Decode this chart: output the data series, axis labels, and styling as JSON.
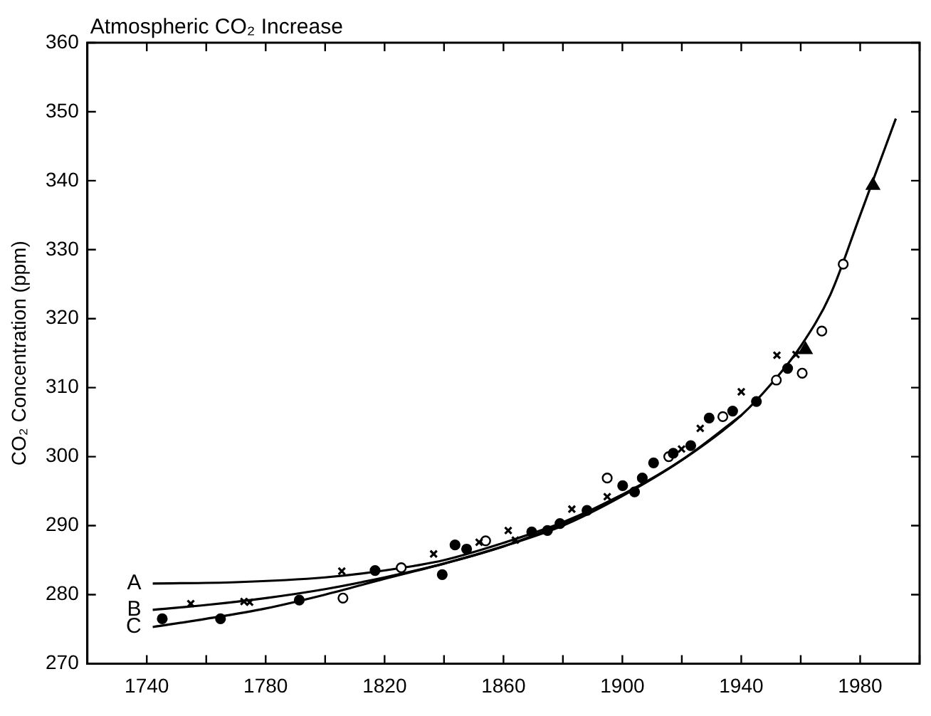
{
  "chart_data": {
    "type": "scatter",
    "title": "Atmospheric CO₂ Increase",
    "ylabel": "CO₂ Concentration (ppm)",
    "xlim": [
      1720,
      2000
    ],
    "xticks": [
      {
        "value": 1720,
        "label": null
      },
      1740,
      {
        "value": 1760,
        "label": null
      },
      1780,
      {
        "value": 1800,
        "label": null
      },
      1820,
      {
        "value": 1840,
        "label": null
      },
      1860,
      {
        "value": 1880,
        "label": null
      },
      1900,
      {
        "value": 1920,
        "label": null
      },
      1940,
      {
        "value": 1960,
        "label": null
      },
      1980,
      {
        "value": 2000,
        "label": null
      }
    ],
    "ylim": [
      270,
      360
    ],
    "yticks": [
      270,
      280,
      290,
      300,
      310,
      320,
      330,
      340,
      350,
      360
    ],
    "grid": false,
    "legend": false,
    "series": [
      {
        "marker": "cross",
        "color": "#000000",
        "x": [
          1754.8,
          1772.7,
          1774.6,
          1805.6,
          1836.5,
          1851.8,
          1861.6,
          1864,
          1883,
          1894.9,
          1919.9,
          1926.2,
          1940,
          1952,
          1958.4
        ],
        "values": [
          278.7,
          279,
          278.9,
          283.4,
          285.9,
          287.6,
          289.3,
          287.9,
          292.4,
          294.2,
          301.1,
          304.1,
          309.4,
          314.7,
          314.8
        ]
      },
      {
        "marker": "circle",
        "color": "#000000",
        "x": [
          1745.2,
          1764.8,
          1791.3,
          1816.8,
          1839.4,
          1843.7,
          1847.6,
          1869.5,
          1874.8,
          1879,
          1888.1,
          1900.1,
          1904.1,
          1906.7,
          1910.5,
          1917.1,
          1923,
          1929.2,
          1937.1,
          1945.1,
          1955.6
        ],
        "values": [
          276.5,
          276.5,
          279.2,
          283.5,
          282.9,
          287.2,
          286.6,
          289.1,
          289.3,
          290.3,
          292.2,
          295.8,
          294.9,
          296.9,
          299.1,
          300.5,
          301.6,
          305.6,
          306.6,
          308,
          312.8
        ]
      },
      {
        "marker": "circle",
        "color": "#ffffff",
        "x": [
          1806,
          1825.6,
          1854,
          1894.9,
          1915.6,
          1933.8,
          1951.8,
          1960.5,
          1967.1,
          1974.3
        ],
        "values": [
          279.5,
          283.9,
          287.8,
          296.9,
          300,
          305.8,
          311.1,
          312.1,
          318.2,
          327.9
        ]
      },
      {
        "marker": "triangle",
        "color": "#000000",
        "x": [
          1961.6,
          1984.3
        ],
        "values": [
          315.5,
          339.3
        ]
      },
      {
        "type": "line",
        "name": "A",
        "marker": "none",
        "color": "#000000",
        "x": [
          1742,
          1770,
          1800,
          1820,
          1840,
          1860,
          1880,
          1900,
          1920,
          1940,
          1950,
          1960,
          1970,
          1980,
          1992
        ],
        "values": [
          281.6,
          281.8,
          282.5,
          283.5,
          285,
          287.5,
          290.5,
          294.5,
          299.5,
          306,
          310.5,
          316,
          323.5,
          335,
          349
        ]
      },
      {
        "type": "line",
        "name": "B",
        "marker": "none",
        "color": "#000000",
        "x": [
          1742,
          1760,
          1780,
          1800,
          1820,
          1840,
          1860,
          1880,
          1900,
          1920,
          1940
        ],
        "values": [
          277.8,
          278.5,
          279.5,
          280.8,
          282.5,
          284.5,
          287,
          290,
          294.3,
          299.5,
          306
        ]
      },
      {
        "type": "line",
        "name": "C",
        "marker": "none",
        "color": "#000000",
        "x": [
          1742,
          1760,
          1780,
          1800,
          1820,
          1840,
          1860,
          1880,
          1900
        ],
        "values": [
          275.3,
          276.5,
          278,
          280,
          282.3,
          284.5,
          287,
          290.3,
          294.5
        ]
      }
    ]
  }
}
